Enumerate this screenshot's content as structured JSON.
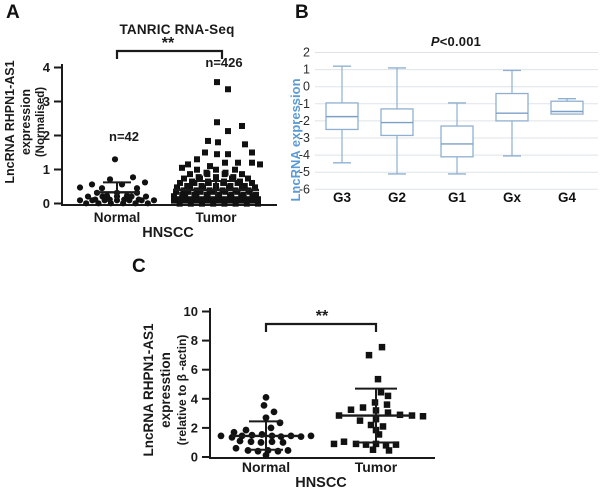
{
  "figure": {
    "background": "#ffffff",
    "text_color": "#1a1a1a",
    "accent_blue": "#5b9bd5",
    "box_stroke": "#8fb0d0",
    "grid_color": "#dfe3e8"
  },
  "panels": {
    "a": {
      "label": "A",
      "title": "TANRIC RNA-Seq",
      "significance": "**",
      "n_normal": "n=42",
      "n_tumor": "n=426",
      "ylabel_line1": "LncRNA RHPN1-AS1 expression",
      "ylabel_line2": "(Normalised)",
      "xlabel": "HNSCC"
    },
    "b": {
      "label": "B",
      "title_italic": "P",
      "title_rest": "<0.001",
      "ylabel": "LncRNA expression",
      "ylabel_color": "#5b9bd5"
    },
    "c": {
      "label": "C",
      "significance": "**",
      "ylabel_line1": "LncRNA RHPN1-AS1 expresstion",
      "ylabel_line2": "(relative to β -actin)",
      "xlabel": "HNSCC"
    }
  },
  "chart_data": [
    {
      "id": "A",
      "type": "scatter",
      "title": "TANRIC RNA-Seq",
      "xlabel": "HNSCC",
      "ylabel": "LncRNA RHPN1-AS1 expression (Normalised)",
      "ylim": [
        0,
        4
      ],
      "yticks": [
        4,
        3,
        2,
        1,
        0
      ],
      "grid": false,
      "significance": "**",
      "marker_color": "#111111",
      "groups": [
        {
          "name": "Normal",
          "n_label": "n=42",
          "marker": "circle",
          "mean": 0.33,
          "sd_upper": 0.62,
          "rows": [
            {
              "y": 0.05,
              "count": 13,
              "spread": 74
            },
            {
              "y": 0.16,
              "count": 9,
              "spread": 58
            },
            {
              "y": 0.27,
              "count": 5,
              "spread": 40
            }
          ],
          "points": [
            [
              -37,
              0.47
            ],
            [
              -25,
              0.56
            ],
            [
              -15,
              0.45
            ],
            [
              -7,
              0.71
            ],
            [
              5,
              0.56
            ],
            [
              16,
              0.77
            ],
            [
              20,
              0.45
            ],
            [
              28,
              0.62
            ],
            [
              -2,
              1.3
            ]
          ]
        },
        {
          "name": "Tumor",
          "n_label": "n=426",
          "marker": "square",
          "mean": 0.4,
          "sd_upper": 0.66,
          "rows": [
            {
              "y": 0.04,
              "count": 16,
              "spread": 84
            },
            {
              "y": 0.17,
              "count": 16,
              "spread": 84
            },
            {
              "y": 0.3,
              "count": 14,
              "spread": 80
            },
            {
              "y": 0.43,
              "count": 13,
              "spread": 78
            },
            {
              "y": 0.56,
              "count": 11,
              "spread": 72
            },
            {
              "y": 0.69,
              "count": 9,
              "spread": 64
            },
            {
              "y": 0.82,
              "count": 7,
              "spread": 52
            },
            {
              "y": 0.95,
              "count": 5,
              "spread": 38
            }
          ],
          "points": [
            [
              1,
              3.57
            ],
            [
              12,
              3.36
            ],
            [
              1,
              2.39
            ],
            [
              26,
              2.28
            ],
            [
              12,
              2.13
            ],
            [
              -8,
              1.84
            ],
            [
              2,
              1.8
            ],
            [
              29,
              1.74
            ],
            [
              36,
              1.5
            ],
            [
              -11,
              1.5
            ],
            [
              1,
              1.45
            ],
            [
              12,
              1.45
            ],
            [
              -19,
              1.3
            ],
            [
              -34,
              1.05
            ],
            [
              -28,
              1.15
            ],
            [
              -6,
              1.1
            ],
            [
              9,
              1.2
            ],
            [
              22,
              1.2
            ],
            [
              36,
              1.2
            ],
            [
              44,
              1.15
            ]
          ]
        }
      ]
    },
    {
      "id": "B",
      "type": "box",
      "title": "P<0.001",
      "ylabel": "LncRNA expression",
      "ylim": [
        -6,
        2
      ],
      "yticks": [
        2,
        1,
        0,
        -1,
        -2,
        -3,
        -4,
        -5,
        -6
      ],
      "grid": true,
      "categories": [
        "G3",
        "G2",
        "G1",
        "Gx",
        "G4"
      ],
      "box_color": "#8fb0d0",
      "median_color": "#7d9fc4",
      "boxes": [
        {
          "category": "G3",
          "whisker_high": 1.2,
          "q3": -0.95,
          "median": -1.75,
          "q1": -2.5,
          "whisker_low": -4.45
        },
        {
          "category": "G2",
          "whisker_high": 1.1,
          "q3": -1.3,
          "median": -2.1,
          "q1": -2.85,
          "whisker_low": -5.1
        },
        {
          "category": "G1",
          "whisker_high": -0.95,
          "q3": -2.3,
          "median": -3.35,
          "q1": -4.1,
          "whisker_low": -5.1
        },
        {
          "category": "Gx",
          "whisker_high": 0.95,
          "q3": -0.4,
          "median": -1.55,
          "q1": -2.0,
          "whisker_low": -4.05
        },
        {
          "category": "G4",
          "whisker_high": -0.7,
          "q3": -0.85,
          "median": -1.45,
          "q1": -1.6,
          "whisker_low": null
        }
      ]
    },
    {
      "id": "C",
      "type": "scatter",
      "xlabel": "HNSCC",
      "ylabel": "LncRNA RHPN1-AS1 expresstion (relative to β -actin)",
      "ylim": [
        0,
        10
      ],
      "yticks": [
        10,
        8,
        6,
        4,
        2,
        0
      ],
      "grid": false,
      "significance": "**",
      "marker_color": "#111111",
      "groups": [
        {
          "name": "Normal",
          "marker": "circle",
          "mean": 1.45,
          "sd_upper": 2.45,
          "sd_lower": 0.5,
          "points": [
            [
              0,
              4.1
            ],
            [
              -2,
              3.55
            ],
            [
              8,
              3.1
            ],
            [
              0,
              2.7
            ],
            [
              14,
              2.35
            ],
            [
              5,
              2.0
            ],
            [
              -20,
              1.85
            ],
            [
              -32,
              1.7
            ],
            [
              -45,
              1.45
            ],
            [
              -34,
              1.35
            ],
            [
              -24,
              1.45
            ],
            [
              -14,
              1.5
            ],
            [
              -4,
              1.55
            ],
            [
              6,
              1.45
            ],
            [
              15,
              1.4
            ],
            [
              25,
              1.45
            ],
            [
              35,
              1.4
            ],
            [
              45,
              1.45
            ],
            [
              -26,
              1.1
            ],
            [
              -15,
              1.05
            ],
            [
              -5,
              1.0
            ],
            [
              6,
              1.05
            ],
            [
              17,
              1.0
            ],
            [
              -30,
              0.6
            ],
            [
              -18,
              0.45
            ],
            [
              -8,
              0.4
            ],
            [
              2,
              0.45
            ],
            [
              12,
              0.4
            ],
            [
              22,
              0.45
            ],
            [
              0,
              0.12
            ]
          ]
        },
        {
          "name": "Tumor",
          "marker": "square",
          "mean": 2.85,
          "sd_upper": 4.7,
          "sd_lower": 1.0,
          "points": [
            [
              6,
              7.55
            ],
            [
              -7,
              7.0
            ],
            [
              2,
              5.35
            ],
            [
              5,
              4.45
            ],
            [
              12,
              4.2
            ],
            [
              -1,
              3.75
            ],
            [
              11,
              3.6
            ],
            [
              -13,
              3.4
            ],
            [
              -25,
              3.25
            ],
            [
              0,
              3.2
            ],
            [
              12,
              3.05
            ],
            [
              -37,
              2.85
            ],
            [
              24,
              2.9
            ],
            [
              36,
              2.85
            ],
            [
              47,
              2.8
            ],
            [
              -16,
              2.5
            ],
            [
              0,
              2.6
            ],
            [
              -5,
              2.2
            ],
            [
              7,
              2.1
            ],
            [
              0,
              1.85
            ],
            [
              3,
              1.55
            ],
            [
              -32,
              1.05
            ],
            [
              -42,
              0.9
            ],
            [
              -20,
              0.9
            ],
            [
              -10,
              0.85
            ],
            [
              0,
              0.9
            ],
            [
              10,
              0.8
            ],
            [
              20,
              0.85
            ],
            [
              -3,
              0.5
            ],
            [
              13,
              0.45
            ]
          ]
        }
      ]
    }
  ]
}
